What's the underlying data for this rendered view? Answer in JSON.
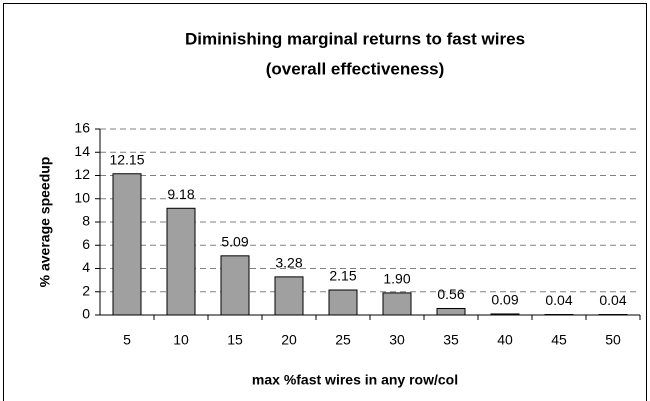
{
  "chart_data": {
    "type": "bar",
    "title": "Diminishing marginal returns to fast wires",
    "subtitle": "(overall effectiveness)",
    "x_label": "max %fast wires in any row/col",
    "y_label": "% average speedup",
    "categories": [
      "5",
      "10",
      "15",
      "20",
      "25",
      "30",
      "35",
      "40",
      "45",
      "50"
    ],
    "values": [
      12.15,
      9.18,
      5.09,
      3.28,
      2.15,
      1.9,
      0.56,
      0.09,
      0.04,
      0.04
    ],
    "value_labels": [
      "12.15",
      "9.18",
      "5.09",
      "3.28",
      "2.15",
      "1.90",
      "0.56",
      "0.09",
      "0.04",
      "0.04"
    ],
    "color": "#a0a0a0",
    "ylim": [
      0,
      16
    ],
    "yticks": [
      0,
      2,
      4,
      6,
      8,
      10,
      12,
      14,
      16
    ],
    "grid": true
  }
}
